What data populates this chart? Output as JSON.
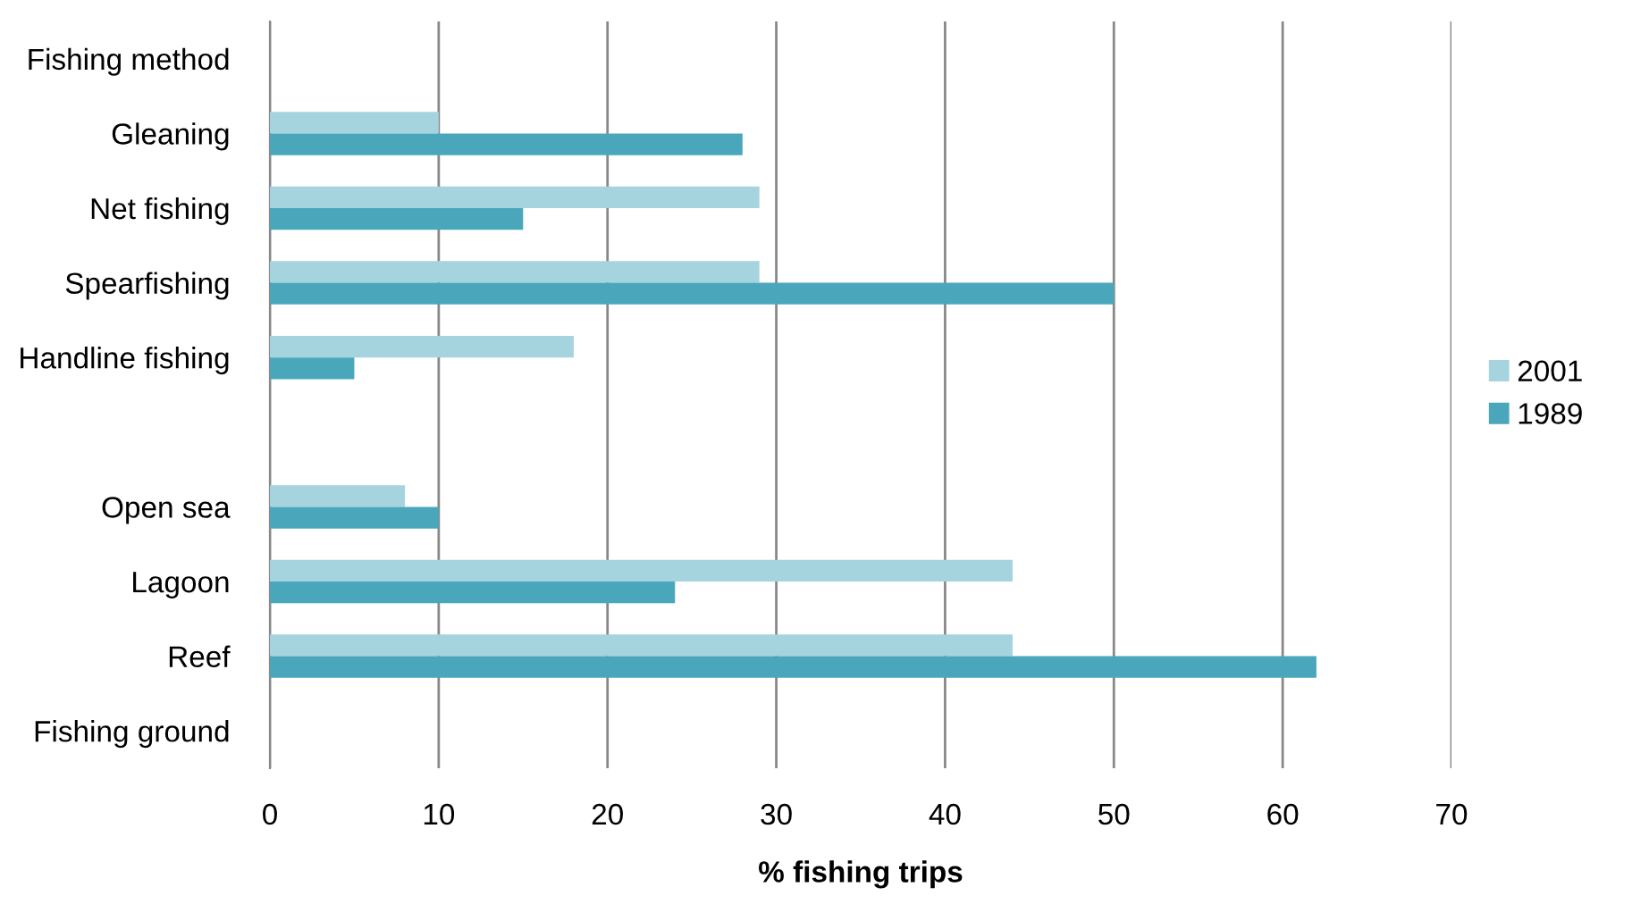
{
  "chart_data": {
    "type": "bar",
    "orientation": "horizontal",
    "xlabel": "% fishing trips",
    "categories": [
      "Fishing method",
      "Gleaning",
      "Net fishing",
      "Spearfishing",
      "Handline fishing",
      null,
      "Open sea",
      "Lagoon",
      "Reef",
      "Fishing ground"
    ],
    "series": [
      {
        "name": "2001",
        "color": "#a5d3de",
        "values": [
          null,
          10,
          29,
          29,
          18,
          null,
          8,
          44,
          44,
          null
        ]
      },
      {
        "name": "1989",
        "color": "#4aa7bb",
        "values": [
          null,
          28,
          15,
          50,
          5,
          null,
          10,
          24,
          62,
          null
        ]
      }
    ],
    "xlim": [
      0,
      70
    ],
    "xticks": [
      0,
      10,
      20,
      30,
      40,
      50,
      60,
      70
    ],
    "grid": "x",
    "legend": "right"
  }
}
